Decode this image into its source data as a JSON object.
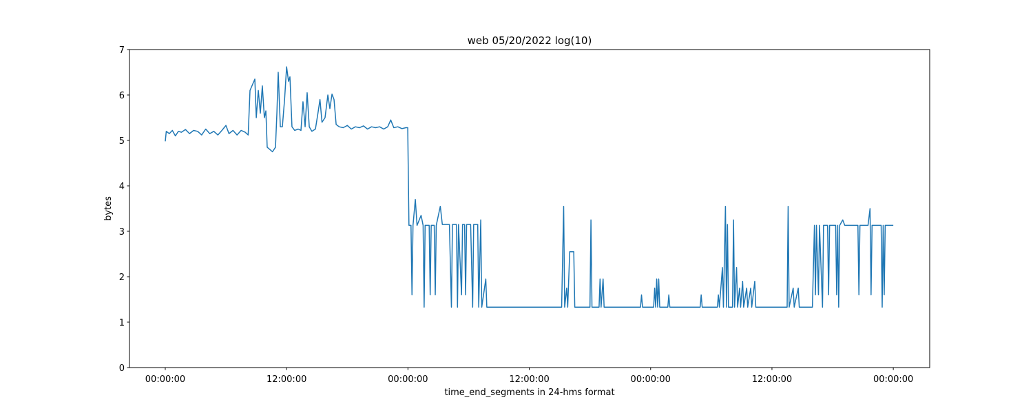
{
  "chart_data": {
    "type": "line",
    "title": "web 05/20/2022 log(10)",
    "x_label": "time_end_segments in 24-hms format",
    "y_label": "bytes",
    "xlim": [
      -3.54,
      75.6
    ],
    "ylim": [
      0,
      7
    ],
    "xticks": [
      {
        "value": 0,
        "label": "00:00:00"
      },
      {
        "value": 12,
        "label": "12:00:00"
      },
      {
        "value": 24,
        "label": "00:00:00"
      },
      {
        "value": 36,
        "label": "12:00:00"
      },
      {
        "value": 48,
        "label": "00:00:00"
      },
      {
        "value": 60,
        "label": "12:00:00"
      },
      {
        "value": 72,
        "label": "00:00:00"
      }
    ],
    "yticks": [
      0,
      1,
      2,
      3,
      4,
      5,
      6,
      7
    ],
    "grid": false,
    "x": [
      0,
      0.1,
      0.4,
      0.7,
      1.0,
      1.3,
      1.6,
      2.0,
      2.4,
      2.8,
      3.2,
      3.6,
      4.0,
      4.4,
      4.8,
      5.2,
      5.6,
      6.0,
      6.3,
      6.7,
      7.1,
      7.5,
      7.9,
      8.2,
      8.38,
      8.86,
      9.0,
      9.2,
      9.4,
      9.6,
      9.8,
      9.95,
      10.08,
      10.35,
      10.6,
      10.9,
      11.04,
      11.17,
      11.38,
      11.58,
      11.8,
      12.0,
      12.19,
      12.33,
      12.53,
      12.8,
      13.15,
      13.42,
      13.62,
      13.83,
      14.03,
      14.24,
      14.5,
      14.85,
      15.1,
      15.3,
      15.5,
      15.8,
      16.08,
      16.28,
      16.49,
      16.69,
      16.9,
      17.2,
      17.6,
      18.0,
      18.4,
      18.8,
      19.2,
      19.6,
      20.0,
      20.4,
      20.8,
      21.2,
      21.6,
      22.0,
      22.3,
      22.6,
      23.0,
      23.4,
      23.8,
      23.98,
      24.1,
      24.3,
      24.4,
      24.5,
      24.73,
      24.9,
      25.3,
      25.5,
      25.6,
      25.7,
      26.1,
      26.2,
      26.3,
      26.6,
      26.7,
      26.8,
      27.2,
      27.4,
      28.1,
      28.3,
      28.4,
      28.8,
      28.9,
      29.0,
      29.3,
      29.4,
      29.6,
      29.7,
      29.8,
      30.2,
      30.4,
      30.5,
      30.9,
      31.0,
      31.2,
      31.3,
      31.7,
      31.8,
      35.0,
      39.2,
      39.4,
      39.5,
      39.7,
      39.8,
      40.0,
      40.4,
      40.5,
      42.0,
      42.1,
      42.2,
      42.9,
      43.0,
      43.1,
      43.3,
      43.4,
      47.0,
      47.1,
      47.2,
      48.3,
      48.4,
      48.5,
      48.6,
      48.7,
      48.8,
      48.9,
      49.7,
      49.8,
      49.9,
      52.9,
      53.0,
      53.1,
      54.6,
      54.7,
      54.8,
      55.1,
      55.2,
      55.4,
      55.5,
      55.6,
      55.7,
      56.1,
      56.2,
      56.3,
      56.5,
      56.6,
      56.8,
      56.9,
      57.1,
      57.2,
      57.5,
      57.6,
      57.9,
      58.0,
      58.3,
      58.4,
      61.5,
      61.6,
      61.7,
      62.1,
      62.2,
      62.6,
      62.7,
      64.0,
      64.2,
      64.3,
      64.4,
      64.6,
      64.7,
      65.0,
      65.1,
      65.5,
      65.6,
      65.7,
      66.3,
      66.4,
      66.5,
      66.6,
      66.7,
      67.0,
      67.2,
      68.5,
      68.6,
      68.7,
      69.5,
      69.7,
      69.8,
      69.9,
      70.5,
      70.8,
      70.9,
      71.0,
      71.1,
      71.2,
      72.0
    ],
    "series": [
      {
        "name": "bytes",
        "color": "#1f77b4",
        "values": [
          4.98,
          5.2,
          5.15,
          5.22,
          5.1,
          5.2,
          5.18,
          5.24,
          5.15,
          5.22,
          5.2,
          5.12,
          5.25,
          5.15,
          5.2,
          5.12,
          5.22,
          5.33,
          5.15,
          5.22,
          5.12,
          5.22,
          5.18,
          5.12,
          6.1,
          6.35,
          5.5,
          6.1,
          5.6,
          6.2,
          5.5,
          5.65,
          4.85,
          4.8,
          4.75,
          4.85,
          5.6,
          6.5,
          5.3,
          5.3,
          5.9,
          6.62,
          6.3,
          6.4,
          5.3,
          5.22,
          5.25,
          5.22,
          5.85,
          5.3,
          6.05,
          5.3,
          5.2,
          5.25,
          5.6,
          5.9,
          5.4,
          5.5,
          6.0,
          5.7,
          6.02,
          5.9,
          5.35,
          5.3,
          5.28,
          5.33,
          5.25,
          5.3,
          5.28,
          5.32,
          5.25,
          5.3,
          5.28,
          5.3,
          5.25,
          5.3,
          5.45,
          5.28,
          5.3,
          5.26,
          5.28,
          5.28,
          3.13,
          3.13,
          1.6,
          3.13,
          3.7,
          3.13,
          3.35,
          3.13,
          1.33,
          3.13,
          3.13,
          1.6,
          3.13,
          3.13,
          1.6,
          3.13,
          3.55,
          3.15,
          3.15,
          1.33,
          3.15,
          3.15,
          1.33,
          3.15,
          1.6,
          3.15,
          3.15,
          1.6,
          3.15,
          3.15,
          1.33,
          3.15,
          3.15,
          1.33,
          3.25,
          1.33,
          1.95,
          1.33,
          1.33,
          1.33,
          3.55,
          1.33,
          1.75,
          1.33,
          2.55,
          2.55,
          1.33,
          1.33,
          3.25,
          1.33,
          1.33,
          1.95,
          1.33,
          1.95,
          1.33,
          1.33,
          1.6,
          1.33,
          1.33,
          1.75,
          1.33,
          1.95,
          1.33,
          1.95,
          1.33,
          1.33,
          1.6,
          1.33,
          1.33,
          1.6,
          1.33,
          1.33,
          1.6,
          1.33,
          2.2,
          1.33,
          3.55,
          1.33,
          3.15,
          1.33,
          1.33,
          3.25,
          1.33,
          2.2,
          1.33,
          1.75,
          1.33,
          1.9,
          1.33,
          1.75,
          1.33,
          1.75,
          1.33,
          1.9,
          1.33,
          1.33,
          3.55,
          1.33,
          1.75,
          1.33,
          1.75,
          1.33,
          1.33,
          3.13,
          1.6,
          3.13,
          1.6,
          3.13,
          1.33,
          3.13,
          3.13,
          1.6,
          3.13,
          3.13,
          1.6,
          3.13,
          1.33,
          3.13,
          3.25,
          3.13,
          3.13,
          1.6,
          3.13,
          3.13,
          3.5,
          1.6,
          3.13,
          3.13,
          3.13,
          1.33,
          3.13,
          1.6,
          3.13,
          3.13
        ]
      }
    ]
  }
}
